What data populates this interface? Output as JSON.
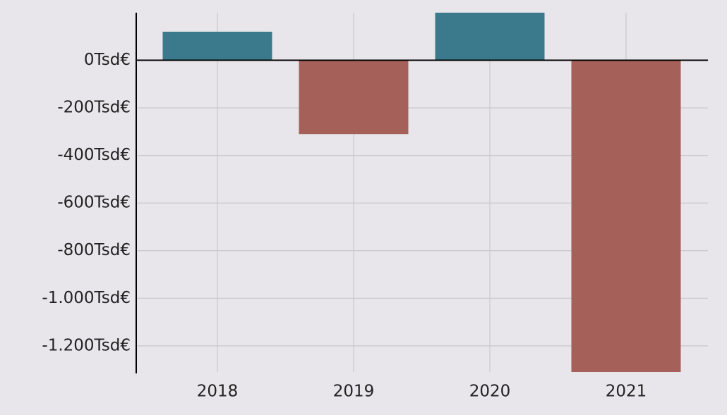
{
  "chart_data": {
    "type": "bar",
    "categories": [
      "2018",
      "2019",
      "2020",
      "2021"
    ],
    "values": [
      120,
      -310,
      200,
      -1310
    ],
    "positive_color": "#3b7a8c",
    "negative_color": "#a6605a",
    "ylim": [
      -1310,
      200
    ],
    "yticks": [
      {
        "value": 0,
        "label": "0Tsd€"
      },
      {
        "value": -200,
        "label": "-200Tsd€"
      },
      {
        "value": -400,
        "label": "-400Tsd€"
      },
      {
        "value": -600,
        "label": "-600Tsd€"
      },
      {
        "value": -800,
        "label": "-800Tsd€"
      },
      {
        "value": -1000,
        "label": "-1.000Tsd€"
      },
      {
        "value": -1200,
        "label": "-1.200Tsd€"
      }
    ],
    "grid": true
  }
}
